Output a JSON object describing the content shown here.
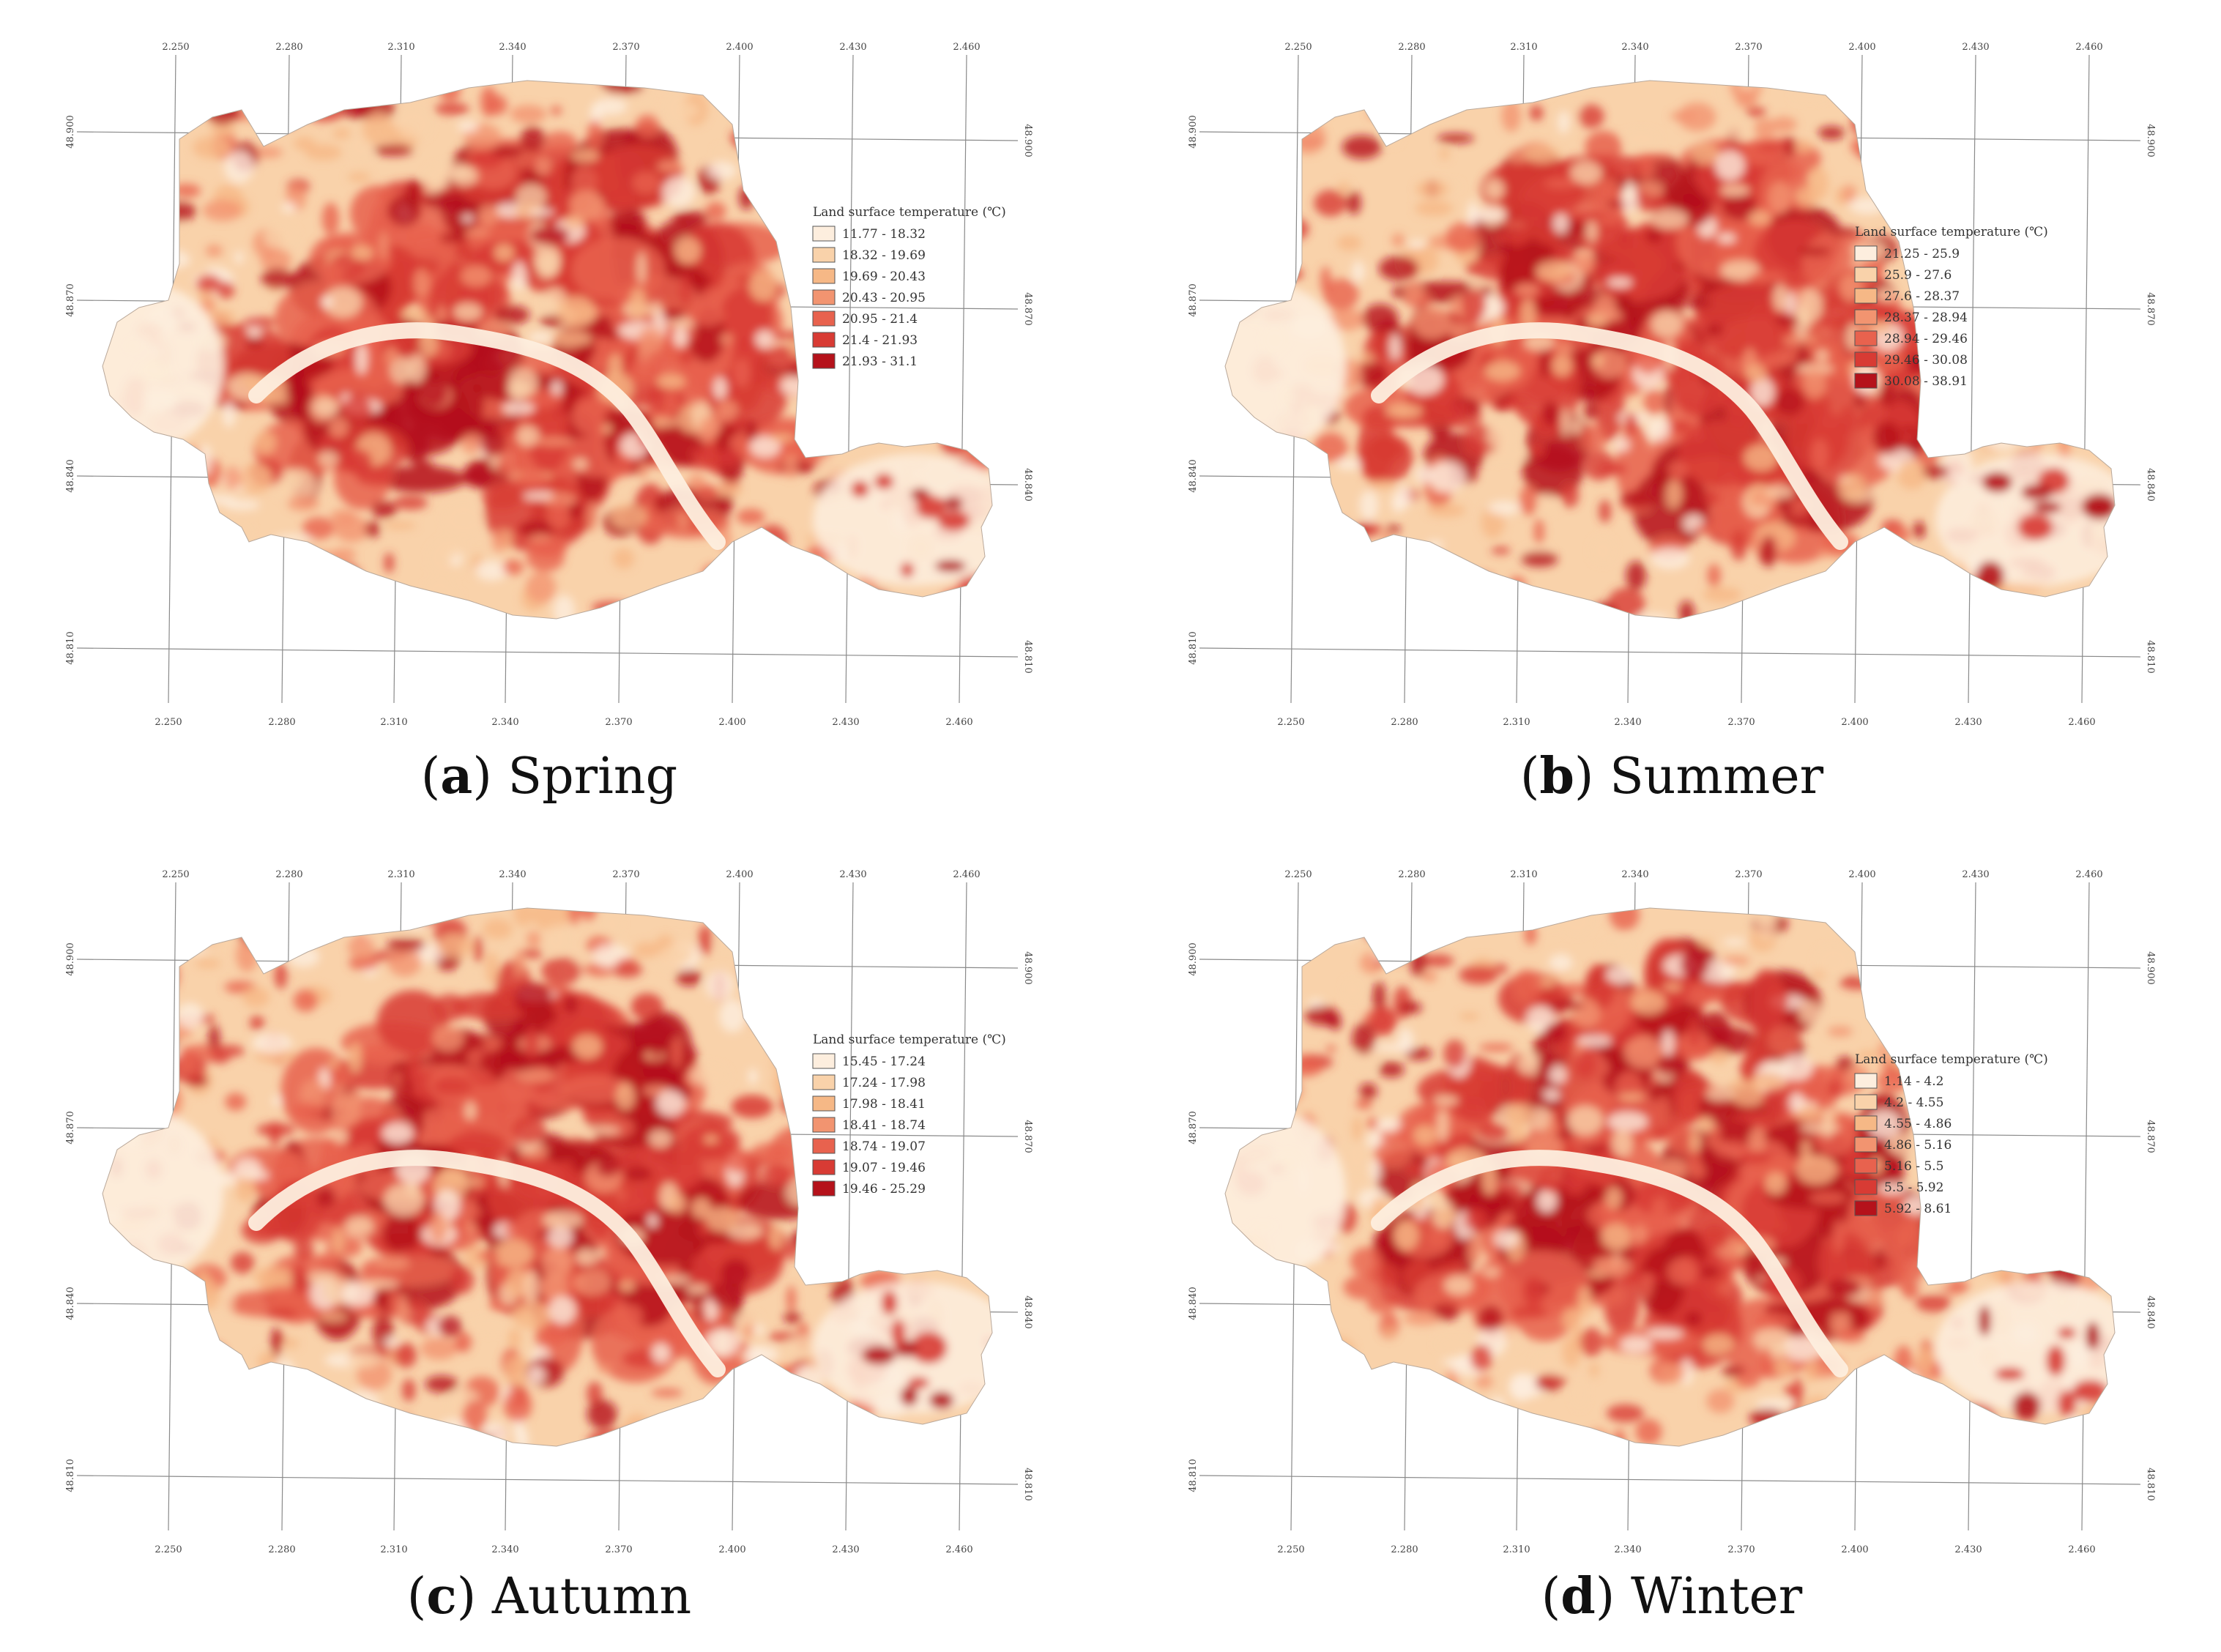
{
  "palette": [
    "#fdeede",
    "#f9d2aa",
    "#f6b886",
    "#f29470",
    "#e8624e",
    "#d83b34",
    "#b5121b"
  ],
  "grid": {
    "lon_ticks": [
      "2.250",
      "2.280",
      "2.310",
      "2.340",
      "2.370",
      "2.400",
      "2.430",
      "2.460"
    ],
    "lat_ticks": [
      "48.900",
      "48.870",
      "48.840",
      "48.810"
    ]
  },
  "panels": [
    {
      "letter": "a",
      "season": "Spring",
      "legend_title": "Land surface temperature (℃)",
      "classes": [
        "11.77 - 18.32",
        "18.32 - 19.69",
        "19.69 - 20.43",
        "20.43 - 20.95",
        "20.95 - 21.4",
        "21.4 - 21.93",
        "21.93 - 31.1"
      ]
    },
    {
      "letter": "b",
      "season": "Summer",
      "legend_title": "Land surface temperature (℃)",
      "classes": [
        "21.25 - 25.9",
        "25.9 - 27.6",
        "27.6 - 28.37",
        "28.37 - 28.94",
        "28.94 - 29.46",
        "29.46 - 30.08",
        "30.08 - 38.91"
      ]
    },
    {
      "letter": "c",
      "season": "Autumn",
      "legend_title": "Land surface temperature (℃)",
      "classes": [
        "15.45 - 17.24",
        "17.24 - 17.98",
        "17.98 - 18.41",
        "18.41 - 18.74",
        "18.74 - 19.07",
        "19.07 - 19.46",
        "19.46 - 25.29"
      ]
    },
    {
      "letter": "d",
      "season": "Winter",
      "legend_title": "Land surface temperature (℃)",
      "classes": [
        "1.14 - 4.2",
        "4.2 - 4.55",
        "4.55 - 4.86",
        "4.86 - 5.16",
        "5.16 - 5.5",
        "5.5 - 5.92",
        "5.92 - 8.61"
      ]
    }
  ]
}
